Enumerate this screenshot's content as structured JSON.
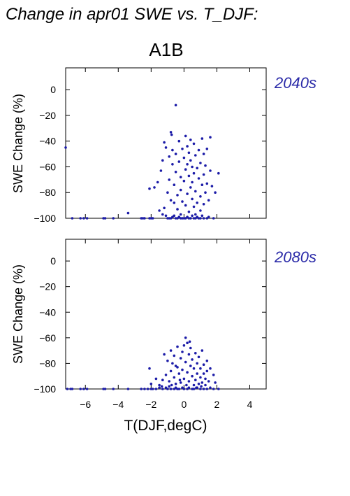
{
  "figure_title": "Change in apr01 SWE vs. T_DJF:",
  "scenario": "A1B",
  "chart_data": [
    {
      "type": "scatter",
      "period": "2040s",
      "xlabel": "T(DJF,degC)",
      "ylabel": "SWE Change (%)",
      "xlim": [
        -7.2,
        5.0
      ],
      "ylim": [
        -100,
        17
      ],
      "xticks": [
        -6,
        -4,
        -2,
        0,
        2,
        4
      ],
      "yticks": [
        0,
        -20,
        -40,
        -60,
        -80,
        -100
      ],
      "xtick_labels_shown": false,
      "grid": false,
      "color": "#1c1ca8",
      "points": [
        [
          -7.2,
          -45
        ],
        [
          -6.8,
          -100
        ],
        [
          -6.3,
          -100
        ],
        [
          -6.1,
          -100
        ],
        [
          -5.9,
          -100
        ],
        [
          -4.9,
          -100
        ],
        [
          -4.8,
          -100
        ],
        [
          -4.3,
          -100
        ],
        [
          -3.4,
          -96
        ],
        [
          -2.6,
          -100
        ],
        [
          -2.5,
          -100
        ],
        [
          -2.4,
          -100
        ],
        [
          -2.1,
          -100
        ],
        [
          -2.0,
          -100
        ],
        [
          -1.9,
          -100
        ],
        [
          -2.1,
          -77
        ],
        [
          -1.8,
          -76
        ],
        [
          -1.5,
          -94
        ],
        [
          -1.3,
          -97
        ],
        [
          -1.2,
          -92
        ],
        [
          -1.1,
          -98
        ],
        [
          -1.0,
          -100
        ],
        [
          -0.9,
          -100
        ],
        [
          -0.8,
          -100
        ],
        [
          -0.7,
          -99
        ],
        [
          -0.6,
          -98
        ],
        [
          -0.5,
          -100
        ],
        [
          -0.4,
          -100
        ],
        [
          -0.3,
          -99
        ],
        [
          -0.2,
          -100
        ],
        [
          -0.1,
          -100
        ],
        [
          0.0,
          -100
        ],
        [
          0.1,
          -100
        ],
        [
          0.2,
          -99
        ],
        [
          0.3,
          -100
        ],
        [
          0.4,
          -100
        ],
        [
          0.5,
          -98
        ],
        [
          0.6,
          -100
        ],
        [
          0.7,
          -100
        ],
        [
          0.8,
          -99
        ],
        [
          0.9,
          -100
        ],
        [
          1.0,
          -100
        ],
        [
          1.1,
          -98
        ],
        [
          1.2,
          -100
        ],
        [
          1.4,
          -100
        ],
        [
          1.5,
          -99
        ],
        [
          1.8,
          -100
        ],
        [
          -1.6,
          -72
        ],
        [
          -1.4,
          -63
        ],
        [
          -1.3,
          -55
        ],
        [
          -1.2,
          -41
        ],
        [
          -1.1,
          -45
        ],
        [
          -1.0,
          -80
        ],
        [
          -0.9,
          -70
        ],
        [
          -0.8,
          -86
        ],
        [
          -0.8,
          -33
        ],
        [
          -0.75,
          -35
        ],
        [
          -0.7,
          -47
        ],
        [
          -0.7,
          -58
        ],
        [
          -0.6,
          -74
        ],
        [
          -0.6,
          -88
        ],
        [
          -0.5,
          -12
        ],
        [
          -0.5,
          -50
        ],
        [
          -0.5,
          -64
        ],
        [
          -0.4,
          -82
        ],
        [
          -0.4,
          -93
        ],
        [
          -0.3,
          -40
        ],
        [
          -0.3,
          -56
        ],
        [
          -0.2,
          -68
        ],
        [
          -0.2,
          -78
        ],
        [
          -0.1,
          -46
        ],
        [
          -0.1,
          -87
        ],
        [
          0.0,
          -53
        ],
        [
          0.0,
          -71
        ],
        [
          0.1,
          -36
        ],
        [
          0.1,
          -62
        ],
        [
          0.1,
          -90
        ],
        [
          0.2,
          -44
        ],
        [
          0.2,
          -58
        ],
        [
          0.2,
          -81
        ],
        [
          0.3,
          -49
        ],
        [
          0.3,
          -67
        ],
        [
          0.3,
          -95
        ],
        [
          0.4,
          -39
        ],
        [
          0.4,
          -55
        ],
        [
          0.4,
          -76
        ],
        [
          0.5,
          -60
        ],
        [
          0.5,
          -72
        ],
        [
          0.5,
          -85
        ],
        [
          0.6,
          -42
        ],
        [
          0.6,
          -65
        ],
        [
          0.6,
          -91
        ],
        [
          0.7,
          -51
        ],
        [
          0.7,
          -79
        ],
        [
          0.8,
          -61
        ],
        [
          0.8,
          -88
        ],
        [
          0.9,
          -47
        ],
        [
          0.9,
          -69
        ],
        [
          1.0,
          -57
        ],
        [
          1.0,
          -83
        ],
        [
          1.0,
          -94
        ],
        [
          1.1,
          -38
        ],
        [
          1.1,
          -74
        ],
        [
          1.2,
          -50
        ],
        [
          1.2,
          -66
        ],
        [
          1.2,
          -89
        ],
        [
          1.3,
          -59
        ],
        [
          1.3,
          -80
        ],
        [
          1.4,
          -46
        ],
        [
          1.4,
          -73
        ],
        [
          1.5,
          -86
        ],
        [
          1.6,
          -37
        ],
        [
          1.6,
          -63
        ],
        [
          1.7,
          -75
        ],
        [
          1.9,
          -80
        ],
        [
          2.1,
          -65
        ],
        [
          -0.9,
          -52
        ],
        [
          -0.2,
          -97
        ],
        [
          0.7,
          -97
        ]
      ]
    },
    {
      "type": "scatter",
      "period": "2080s",
      "xlabel": "T(DJF,degC)",
      "ylabel": "SWE Change (%)",
      "xlim": [
        -7.2,
        5.0
      ],
      "ylim": [
        -100,
        17
      ],
      "xticks": [
        -6,
        -4,
        -2,
        0,
        2,
        4
      ],
      "yticks": [
        0,
        -20,
        -40,
        -60,
        -80,
        -100
      ],
      "xtick_labels_shown": true,
      "grid": false,
      "color": "#1c1ca8",
      "points": [
        [
          -7.1,
          -100
        ],
        [
          -6.9,
          -100
        ],
        [
          -6.8,
          -100
        ],
        [
          -6.3,
          -100
        ],
        [
          -6.1,
          -100
        ],
        [
          -5.9,
          -100
        ],
        [
          -4.9,
          -100
        ],
        [
          -4.8,
          -100
        ],
        [
          -4.3,
          -100
        ],
        [
          -3.4,
          -100
        ],
        [
          -2.6,
          -100
        ],
        [
          -2.4,
          -100
        ],
        [
          -2.2,
          -100
        ],
        [
          -2.0,
          -100
        ],
        [
          -1.9,
          -100
        ],
        [
          -1.7,
          -100
        ],
        [
          -1.5,
          -99
        ],
        [
          -1.3,
          -100
        ],
        [
          -1.1,
          -99
        ],
        [
          -1.0,
          -100
        ],
        [
          -0.9,
          -98
        ],
        [
          -0.8,
          -100
        ],
        [
          -0.6,
          -100
        ],
        [
          -0.5,
          -99
        ],
        [
          -0.4,
          -100
        ],
        [
          -0.3,
          -100
        ],
        [
          -0.1,
          -99
        ],
        [
          0.0,
          -100
        ],
        [
          0.2,
          -100
        ],
        [
          0.3,
          -99
        ],
        [
          0.5,
          -100
        ],
        [
          0.6,
          -100
        ],
        [
          0.8,
          -99
        ],
        [
          1.0,
          -100
        ],
        [
          1.2,
          -100
        ],
        [
          1.4,
          -100
        ],
        [
          1.6,
          -99
        ],
        [
          1.8,
          -100
        ],
        [
          2.1,
          -100
        ],
        [
          -2.1,
          -84
        ],
        [
          -2.0,
          -96
        ],
        [
          -1.7,
          -92
        ],
        [
          -1.5,
          -97
        ],
        [
          -1.3,
          -93
        ],
        [
          -1.2,
          -73
        ],
        [
          -1.1,
          -89
        ],
        [
          -1.0,
          -78
        ],
        [
          -0.9,
          -94
        ],
        [
          -0.8,
          -70
        ],
        [
          -0.8,
          -86
        ],
        [
          -0.7,
          -80
        ],
        [
          -0.6,
          -91
        ],
        [
          -0.6,
          -74
        ],
        [
          -0.5,
          -96
        ],
        [
          -0.4,
          -83
        ],
        [
          -0.4,
          -67
        ],
        [
          -0.3,
          -88
        ],
        [
          -0.2,
          -76
        ],
        [
          -0.2,
          -95
        ],
        [
          -0.1,
          -71
        ],
        [
          -0.1,
          -85
        ],
        [
          0.0,
          -66
        ],
        [
          0.0,
          -92
        ],
        [
          0.1,
          -60
        ],
        [
          0.1,
          -79
        ],
        [
          0.2,
          -64
        ],
        [
          0.2,
          -87
        ],
        [
          0.3,
          -73
        ],
        [
          0.3,
          -94
        ],
        [
          0.4,
          -82
        ],
        [
          0.4,
          -68
        ],
        [
          0.5,
          -90
        ],
        [
          0.5,
          -77
        ],
        [
          0.6,
          -97
        ],
        [
          0.6,
          -84
        ],
        [
          0.7,
          -72
        ],
        [
          0.7,
          -93
        ],
        [
          0.8,
          -80
        ],
        [
          0.8,
          -88
        ],
        [
          0.9,
          -96
        ],
        [
          0.9,
          -75
        ],
        [
          1.0,
          -84
        ],
        [
          1.0,
          -91
        ],
        [
          1.1,
          -70
        ],
        [
          1.1,
          -95
        ],
        [
          1.2,
          -81
        ],
        [
          1.2,
          -88
        ],
        [
          1.3,
          -92
        ],
        [
          1.3,
          -97
        ],
        [
          1.4,
          -78
        ],
        [
          1.4,
          -86
        ],
        [
          1.5,
          -94
        ],
        [
          1.6,
          -84
        ],
        [
          1.8,
          -89
        ],
        [
          1.9,
          -95
        ],
        [
          -0.5,
          -82
        ],
        [
          0.15,
          -97
        ],
        [
          0.35,
          -63
        ],
        [
          0.75,
          -99
        ],
        [
          -0.25,
          -93
        ],
        [
          1.05,
          -98
        ],
        [
          -1.35,
          -98
        ],
        [
          -0.75,
          -97
        ]
      ]
    }
  ]
}
